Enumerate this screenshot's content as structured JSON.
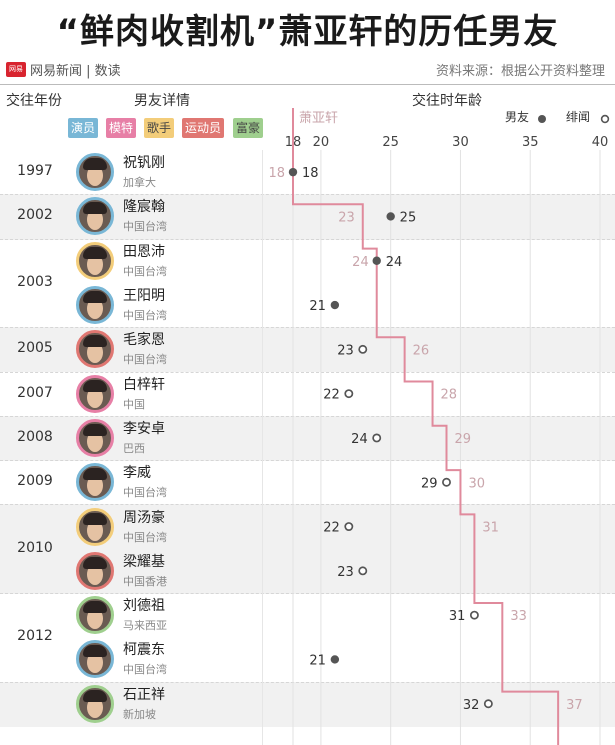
{
  "title": "“鲜肉收割机”萧亚轩的历任男友",
  "brand": {
    "logo_text": "网易",
    "name": "网易新闻 | 数读"
  },
  "source": "资料来源：根据公开资料整理",
  "headers": {
    "year": "交往年份",
    "detail": "男友详情",
    "age": "交往时年龄"
  },
  "categories": [
    {
      "label": "演员",
      "color": "#79b7d6"
    },
    {
      "label": "模特",
      "color": "#e77fa6"
    },
    {
      "label": "歌手",
      "color": "#f3cd7a"
    },
    {
      "label": "运动员",
      "color": "#e07772"
    },
    {
      "label": "富豪",
      "color": "#9fcf8e"
    }
  ],
  "legend": {
    "boyfriend": "男友",
    "scandal": "绯闻",
    "elva": "萧亚轩"
  },
  "colors": {
    "elva_line": "#e08a9c",
    "elva_text": "#c9a5ab",
    "marker": "#555555",
    "shade": "#f1f1f1"
  },
  "chart_data": {
    "type": "scatter",
    "title": "“鲜肉收割机”萧亚轩的历任男友",
    "xlabel": "交往时年龄",
    "xlim": [
      18,
      40
    ],
    "xticks": [
      18,
      20,
      25,
      30,
      35,
      40
    ],
    "years": [
      "1997",
      "2002",
      "2003",
      "2005",
      "2007",
      "2008",
      "2009",
      "2010",
      "2012"
    ],
    "rows": [
      {
        "year": "1997",
        "name": "祝钒刚",
        "country": "加拿大",
        "age": 18,
        "type": "男友",
        "elva_age": 18,
        "ring": "#79b7d6"
      },
      {
        "year": "2002",
        "name": "隆宸翰",
        "country": "中国台湾",
        "age": 25,
        "type": "男友",
        "elva_age": 23,
        "ring": "#79b7d6"
      },
      {
        "year": "2003",
        "name": "田恩沛",
        "country": "中国台湾",
        "age": 24,
        "type": "男友",
        "elva_age": 24,
        "ring": "#f3cd7a"
      },
      {
        "year": "2003",
        "name": "王阳明",
        "country": "中国台湾",
        "age": 21,
        "type": "男友",
        "elva_age": null,
        "ring": "#79b7d6"
      },
      {
        "year": "2005",
        "name": "毛家恩",
        "country": "中国台湾",
        "age": 23,
        "type": "绯闻",
        "elva_age": 26,
        "ring": "#e07772"
      },
      {
        "year": "2007",
        "name": "白梓轩",
        "country": "中国",
        "age": 22,
        "type": "绯闻",
        "elva_age": 28,
        "ring": "#e77fa6"
      },
      {
        "year": "2008",
        "name": "李安卓",
        "country": "巴西",
        "age": 24,
        "type": "绯闻",
        "elva_age": 29,
        "ring": "#e77fa6"
      },
      {
        "year": "2009",
        "name": "李威",
        "country": "中国台湾",
        "age": 29,
        "type": "绯闻",
        "elva_age": 30,
        "ring": "#79b7d6"
      },
      {
        "year": "2010",
        "name": "周汤豪",
        "country": "中国台湾",
        "age": 22,
        "type": "绯闻",
        "elva_age": 31,
        "ring": "#f3cd7a"
      },
      {
        "year": "2010",
        "name": "梁耀基",
        "country": "中国香港",
        "age": 23,
        "type": "绯闻",
        "elva_age": null,
        "ring": "#e07772"
      },
      {
        "year": "2012",
        "name": "刘德祖",
        "country": "马来西亚",
        "age": 31,
        "type": "绯闻",
        "elva_age": 33,
        "ring": "#9fcf8e"
      },
      {
        "year": "2012",
        "name": "柯震东",
        "country": "中国台湾",
        "age": 21,
        "type": "男友",
        "elva_age": null,
        "ring": "#79b7d6"
      },
      {
        "year": "",
        "name": "石正祥",
        "country": "新加坡",
        "age": 32,
        "type": "绯闻",
        "elva_age": 37,
        "ring": "#9fcf8e"
      }
    ]
  }
}
